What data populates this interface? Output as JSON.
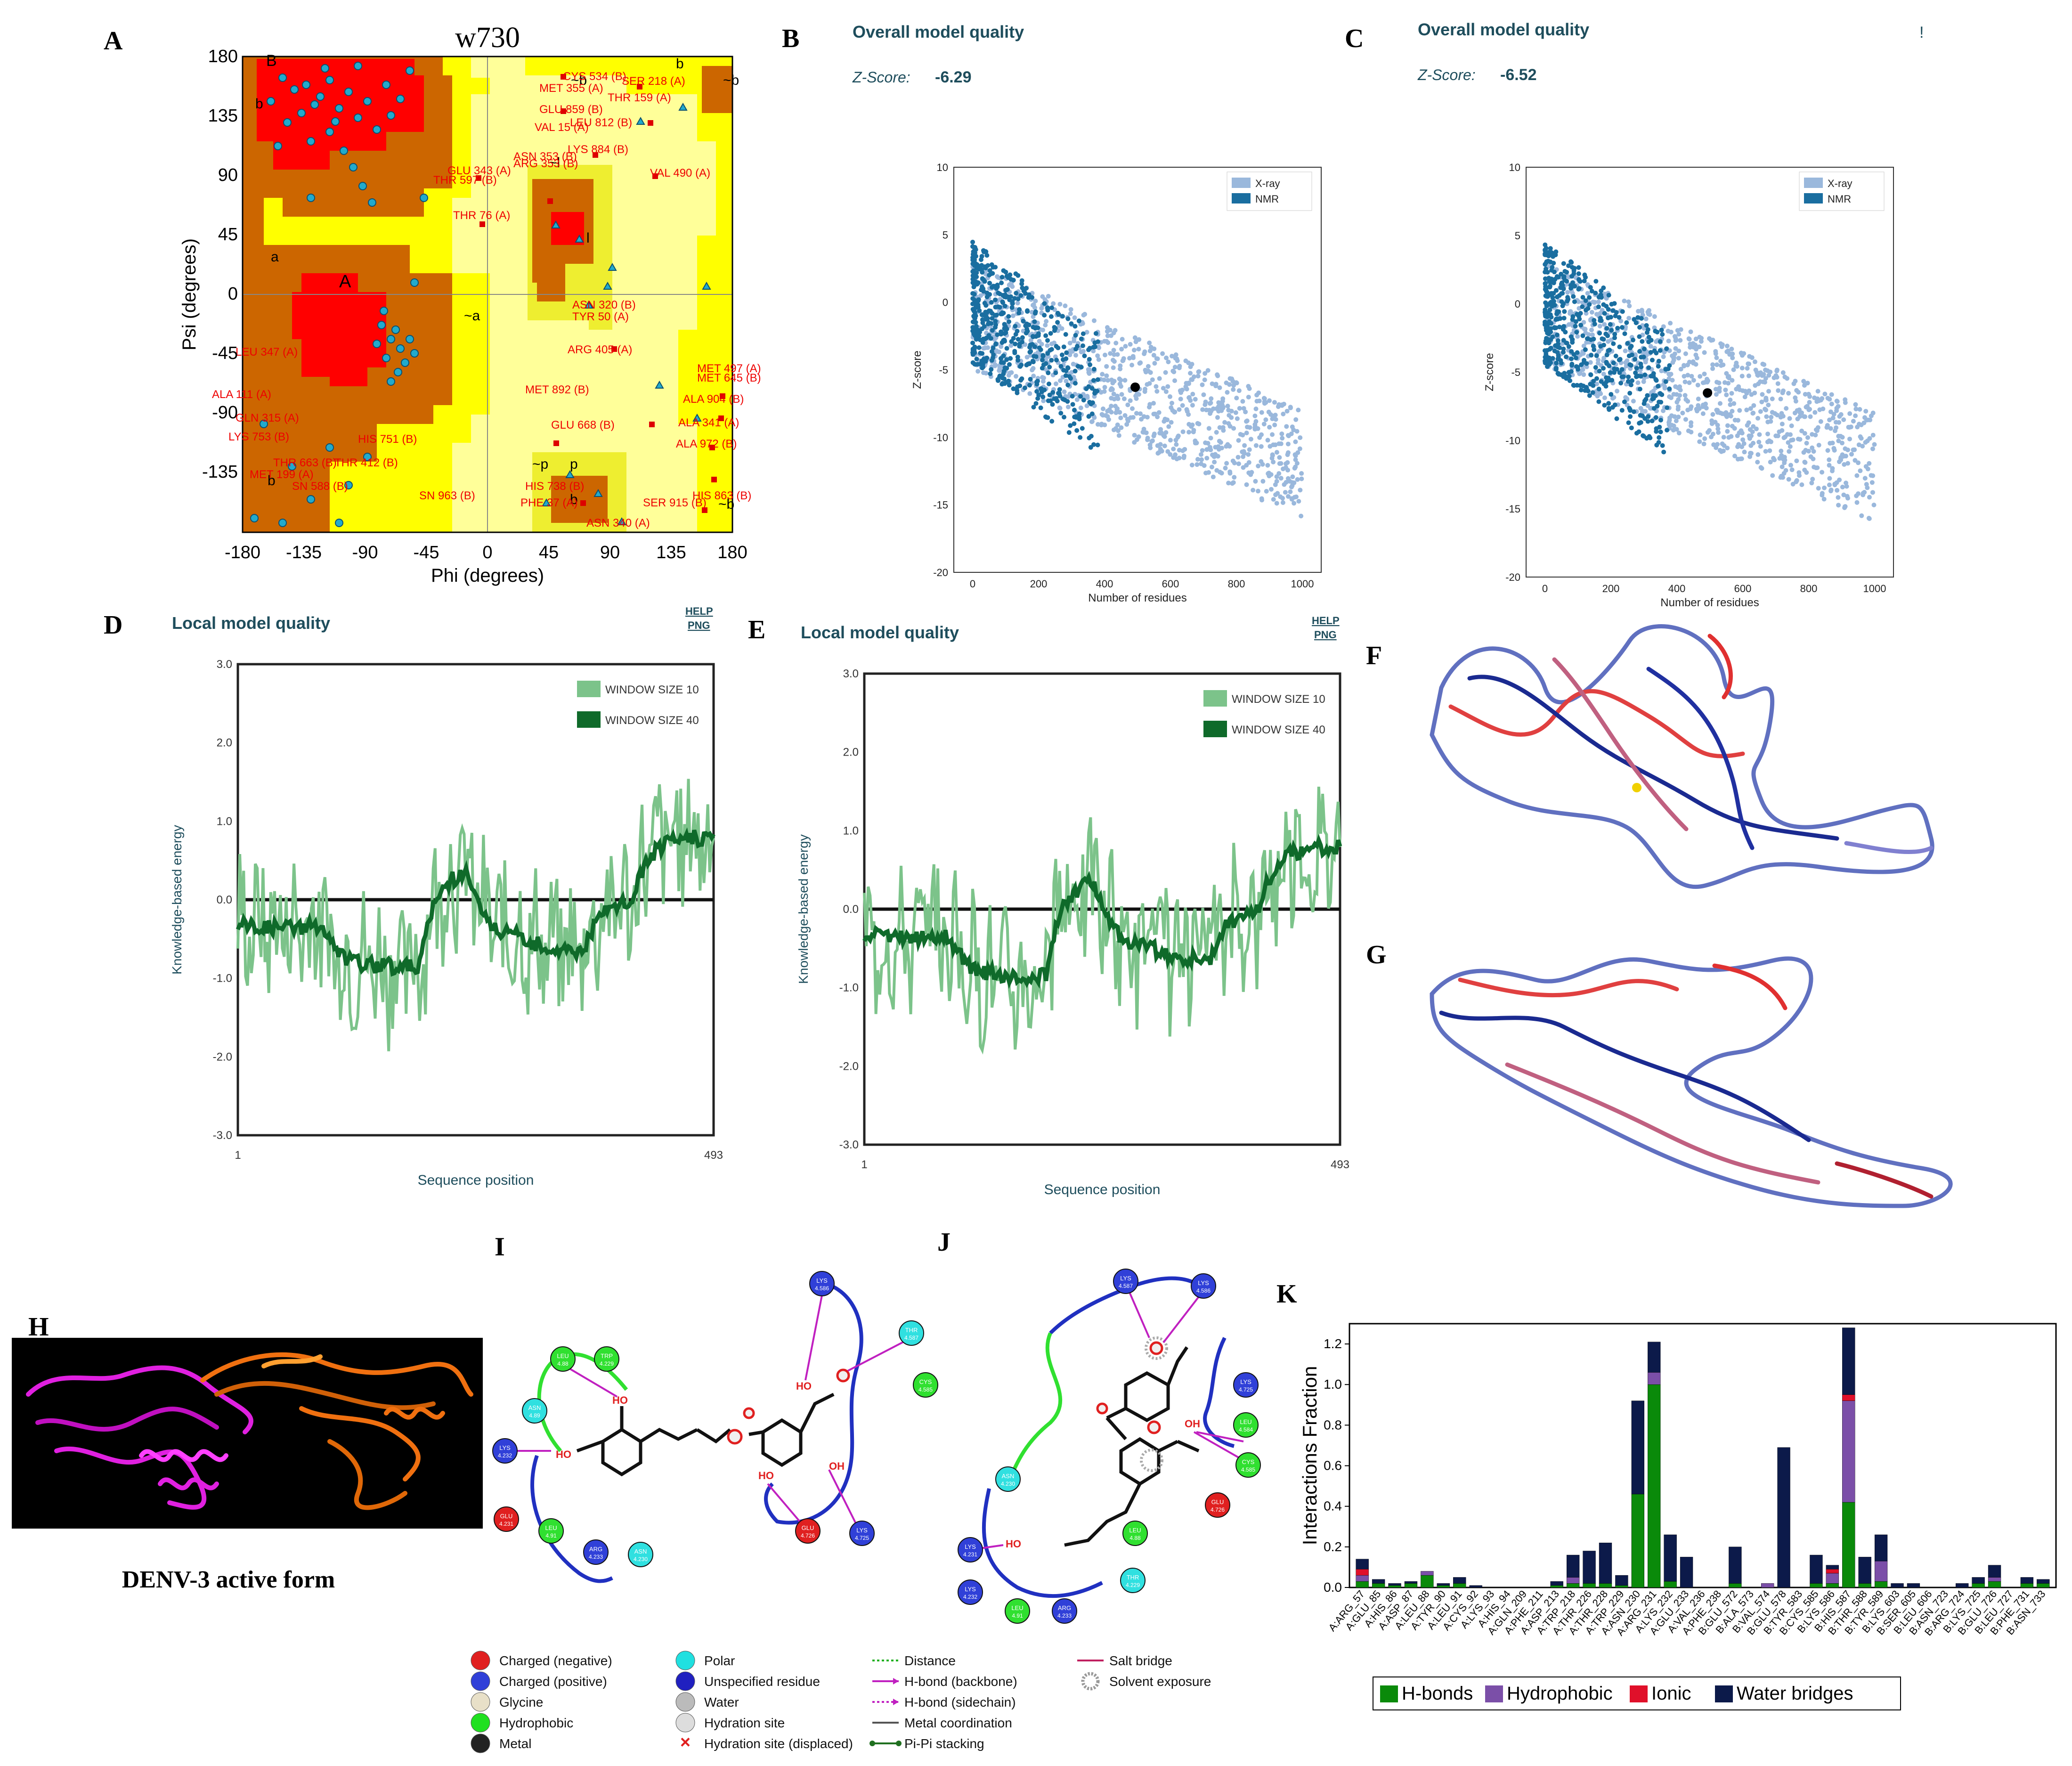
{
  "panel_labels": [
    "A",
    "B",
    "C",
    "D",
    "E",
    "F",
    "G",
    "H",
    "I",
    "J",
    "K"
  ],
  "ramachandran": {
    "title": "w730",
    "xlabel": "Phi (degrees)",
    "ylabel": "Psi (degrees)",
    "x_ticks": [
      "-180",
      "-135",
      "-90",
      "-45",
      "0",
      "45",
      "90",
      "135",
      "180"
    ],
    "y_ticks": [
      "180",
      "135",
      "90",
      "45",
      "0",
      "-45",
      "-90",
      "-135"
    ],
    "region_letters": [
      "B",
      "b",
      "b",
      "a",
      "A",
      "~a",
      "~b",
      "~b",
      "~l",
      "l",
      "p",
      "~p",
      "b",
      "b",
      "~b"
    ],
    "residue_labels": [
      "CYS 534 (B)",
      "SER 218 (A)",
      "MET 355 (A)",
      "THR 159 (A)",
      "GLU 859 (B)",
      "VAL 15 (A)",
      "LEU 812 (B)",
      "LYS 884 (B)",
      "VAL 490 (A)",
      "GLU 343 (A)",
      "ARG 353 (B)",
      "ASN 353 (B)",
      "THR 597 (B)",
      "THR 76 (A)",
      "ASN 320 (B)",
      "TYR 50 (A)",
      "ARG 405 (A)",
      "MET 497 (A)",
      "LEU 347 (A)",
      "MET 645 (B)",
      "ALA 904 (B)",
      "ALA 111 (A)",
      "MET 892 (B)",
      "GLU 668 (B)",
      "GLN 315 (A)",
      "LYS 753 (B)",
      "HIS 751 (B)",
      "ALA 341 (A)",
      "ALA 972 (B)",
      "THR 663 (B)",
      "THR 412 (B)",
      "MET 199 (A)",
      "SN 588 (B)",
      "SN 963 (B)",
      "HIS 738 (B)",
      "PHE 37 (A)",
      "SER 915 (B)",
      "HIS 863 (B)",
      "ASN 340 (A)"
    ]
  },
  "zscore_panels": [
    {
      "heading": "Overall model quality",
      "zscore_label": "Z-Score:",
      "zscore_value": "-6.29",
      "legend": [
        "X-ray",
        "NMR"
      ],
      "xlabel": "Number of residues",
      "ylabel": "Z-score",
      "x_ticks": [
        "0",
        "200",
        "400",
        "600",
        "800",
        "1000"
      ],
      "y_ticks": [
        "10",
        "5",
        "0",
        "-5",
        "-10",
        "-15",
        "-20"
      ],
      "extra_glyph": ""
    },
    {
      "heading": "Overall model quality",
      "zscore_label": "Z-Score:",
      "zscore_value": "-6.52",
      "legend": [
        "X-ray",
        "NMR"
      ],
      "xlabel": "Number of residues",
      "ylabel": "Z-score",
      "x_ticks": [
        "0",
        "200",
        "400",
        "600",
        "800",
        "1000"
      ],
      "y_ticks": [
        "10",
        "5",
        "0",
        "-5",
        "-10",
        "-15",
        "-20"
      ],
      "extra_glyph": "!"
    }
  ],
  "local_panels": [
    {
      "heading": "Local model quality",
      "help": "HELP",
      "png": "PNG",
      "legend": [
        "WINDOW SIZE 10",
        "WINDOW SIZE 40"
      ],
      "xlabel": "Sequence position",
      "ylabel": "Knowledge-based energy",
      "y_ticks": [
        "3.0",
        "2.0",
        "1.0",
        "0.0",
        "-1.0",
        "-2.0",
        "-3.0"
      ],
      "x_start": "1",
      "x_end": "493"
    },
    {
      "heading": "Local model quality",
      "help": "HELP",
      "png": "PNG",
      "legend": [
        "WINDOW SIZE 10",
        "WINDOW SIZE 40"
      ],
      "xlabel": "Sequence position",
      "ylabel": "Knowledge-based energy",
      "y_ticks": [
        "3.0",
        "2.0",
        "1.0",
        "0.0",
        "-1.0",
        "-2.0",
        "-3.0"
      ],
      "x_start": "1",
      "x_end": "493"
    }
  ],
  "panel_h_caption": "DENV-3 active form",
  "diagram_i_nodes": [
    "LEU\n4.88",
    "TRP\n4.229",
    "ASN\n4.89",
    "LYS\n4.232",
    "GLU\n4.231",
    "LEU\n4.91",
    "ARG\n4.233",
    "ASN\n4.230",
    "LYS\n4.586",
    "THR\n4.587",
    "CYS\n4.585",
    "GLU\n4.726",
    "LYS\n4.725"
  ],
  "diagram_j_nodes": [
    "LYS\n4.587",
    "LYS\n4.586",
    "LYS\n4.725",
    "LEU\n4.584",
    "CYS\n4.585",
    "GLU\n4.726",
    "ASN\n4.230",
    "LYS\n4.231",
    "LEU\n4.88",
    "THR\n4.229",
    "LYS\n4.232",
    "LEU\n4.91",
    "ARG\n4.233"
  ],
  "interaction_legend": [
    {
      "label": "Charged (negative)",
      "color": "#e02020"
    },
    {
      "label": "Charged (positive)",
      "color": "#3040d8"
    },
    {
      "label": "Glycine",
      "color": "#e8e0c8"
    },
    {
      "label": "Hydrophobic",
      "color": "#20e020"
    },
    {
      "label": "Metal",
      "color": "#222222"
    },
    {
      "label": "Polar",
      "color": "#20e0e0"
    },
    {
      "label": "Unspecified residue",
      "color": "#2020c0"
    },
    {
      "label": "Water",
      "color": "#bbbbbb"
    },
    {
      "label": "Hydration site",
      "color": "#dddddd"
    },
    {
      "label": "Hydration site (displaced)",
      "color": "#e02020"
    },
    {
      "label": "Distance",
      "color": "#20b020"
    },
    {
      "label": "H-bond (backbone)",
      "color": "#c020c0"
    },
    {
      "label": "H-bond (sidechain)",
      "color": "#c020c0"
    },
    {
      "label": "Metal coordination",
      "color": "#555555"
    },
    {
      "label": "Pi-Pi stacking",
      "color": "#207020"
    },
    {
      "label": "Salt bridge",
      "color": "#c02060"
    },
    {
      "label": "Solvent exposure",
      "color": "#999999"
    }
  ],
  "chart_data": {
    "type": "bar",
    "title": "",
    "xlabel": "",
    "ylabel": "Interactions Fraction",
    "ylim": [
      0,
      1.3
    ],
    "y_ticks": [
      "0.0",
      "0.2",
      "0.4",
      "0.6",
      "0.8",
      "1.0",
      "1.2"
    ],
    "legend_position": "bottom",
    "categories": [
      "A:ARG_57",
      "A:GLU_85",
      "A:HIS_86",
      "A:ASP_87",
      "A:LEU_88",
      "A:TYR_90",
      "A:LEU_91",
      "A:CYS_92",
      "A:LYS_93",
      "A:HIS_94",
      "A:GLN_209",
      "A:PHE_211",
      "A:ASP_213",
      "A:TRP_218",
      "A:THR_226",
      "A:THR_228",
      "A:TRP_229",
      "A:ASN_230",
      "A:ARG_231",
      "A:LYS_232",
      "A:GLU_233",
      "A:VAL_236",
      "A:PHE_238",
      "B:GLU_572",
      "B:ALA_573",
      "B:VAL_574",
      "B:GLU_578",
      "B:TYR_583",
      "B:CYS_585",
      "B:LYS_586",
      "B:HIS_587",
      "B:THR_588",
      "B:TYR_589",
      "B:LYS_603",
      "B:SER_605",
      "B:LEU_606",
      "B:ASN_723",
      "B:ARG_724",
      "B:LYS_725",
      "B:GLU_726",
      "B:LEU_727",
      "B:PHE_731",
      "B:ASN_733"
    ],
    "series": [
      {
        "name": "H-bonds",
        "color": "#0a8a0a",
        "values": [
          0.03,
          0.02,
          0.01,
          0.02,
          0.06,
          0.01,
          0.02,
          0.0,
          0.0,
          0.0,
          0.0,
          0.0,
          0.01,
          0.02,
          0.02,
          0.02,
          0.01,
          0.46,
          1.0,
          0.03,
          0.0,
          0.0,
          0.0,
          0.02,
          0.0,
          0.0,
          0.0,
          0.0,
          0.02,
          0.02,
          0.42,
          0.02,
          0.03,
          0.0,
          0.0,
          0.0,
          0.0,
          0.0,
          0.02,
          0.03,
          0.0,
          0.02,
          0.02
        ]
      },
      {
        "name": "Hydrophobic",
        "color": "#7b4fa8",
        "values": [
          0.03,
          0.0,
          0.0,
          0.0,
          0.02,
          0.0,
          0.0,
          0.0,
          0.0,
          0.0,
          0.0,
          0.0,
          0.0,
          0.03,
          0.0,
          0.0,
          0.0,
          0.0,
          0.06,
          0.0,
          0.0,
          0.0,
          0.0,
          0.0,
          0.0,
          0.02,
          0.0,
          0.0,
          0.0,
          0.05,
          0.5,
          0.0,
          0.1,
          0.0,
          0.0,
          0.0,
          0.0,
          0.0,
          0.0,
          0.02,
          0.0,
          0.0,
          0.0
        ]
      },
      {
        "name": "Ionic",
        "color": "#e0102a",
        "values": [
          0.03,
          0.0,
          0.0,
          0.0,
          0.0,
          0.0,
          0.0,
          0.0,
          0.0,
          0.0,
          0.0,
          0.0,
          0.0,
          0.0,
          0.0,
          0.0,
          0.0,
          0.0,
          0.0,
          0.0,
          0.0,
          0.0,
          0.0,
          0.0,
          0.0,
          0.0,
          0.0,
          0.0,
          0.0,
          0.02,
          0.03,
          0.0,
          0.0,
          0.0,
          0.0,
          0.0,
          0.0,
          0.0,
          0.0,
          0.0,
          0.0,
          0.0,
          0.0
        ]
      },
      {
        "name": "Water bridges",
        "color": "#0c1a4a",
        "values": [
          0.05,
          0.02,
          0.01,
          0.01,
          0.0,
          0.01,
          0.03,
          0.01,
          0.0,
          0.0,
          0.0,
          0.0,
          0.02,
          0.11,
          0.16,
          0.2,
          0.05,
          0.46,
          0.15,
          0.23,
          0.15,
          0.0,
          0.0,
          0.18,
          0.0,
          0.0,
          0.69,
          0.0,
          0.14,
          0.02,
          0.33,
          0.13,
          0.13,
          0.02,
          0.02,
          0.0,
          0.0,
          0.02,
          0.03,
          0.06,
          0.0,
          0.03,
          0.02
        ]
      }
    ]
  }
}
